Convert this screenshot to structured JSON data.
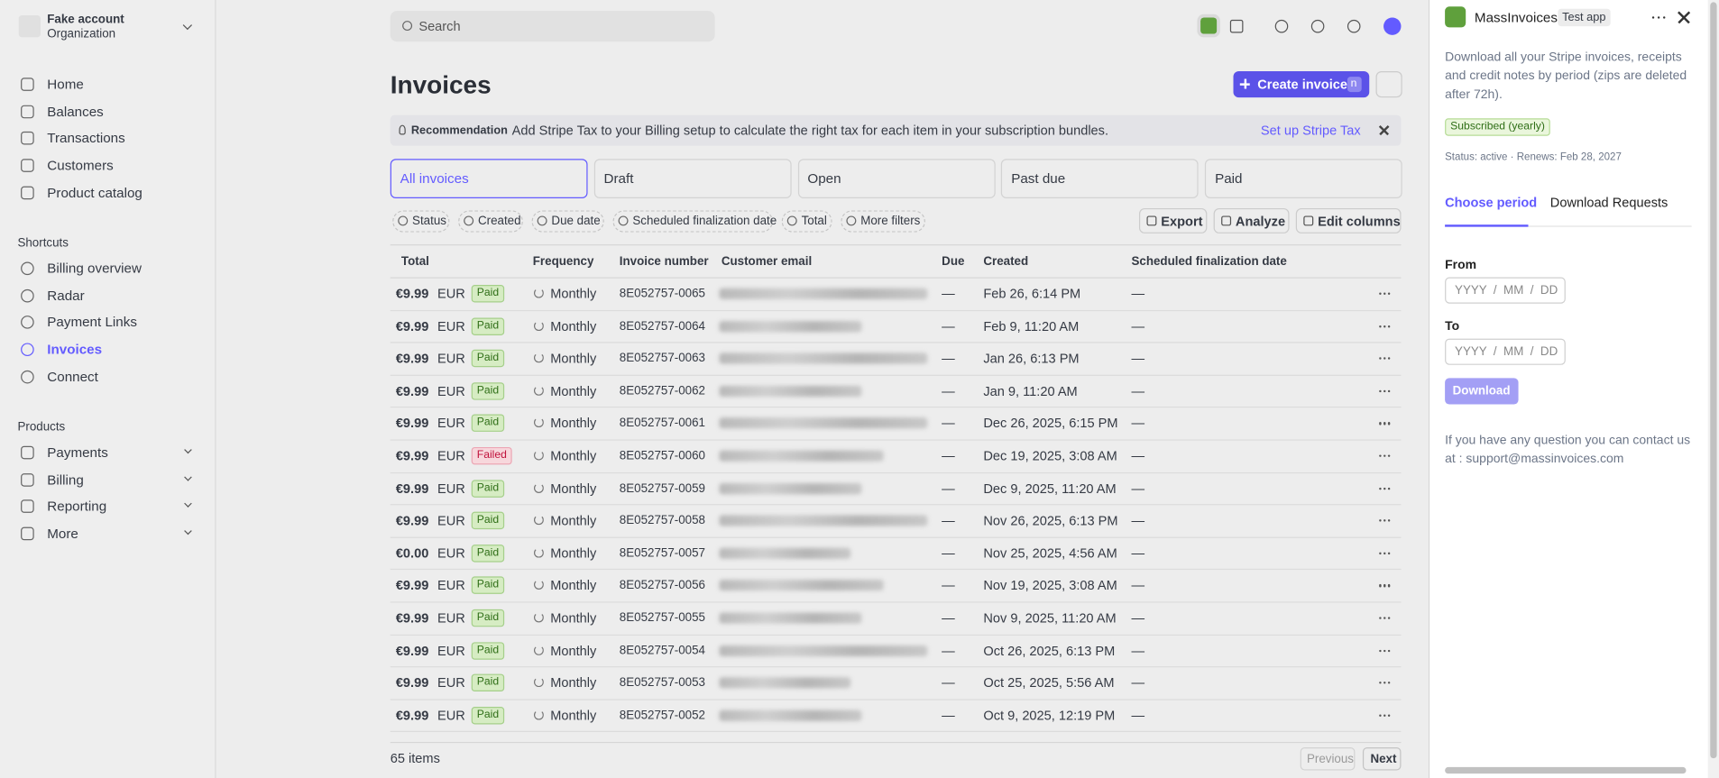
{
  "account": {
    "name": "Fake account",
    "type": "Organization"
  },
  "nav": [
    "Home",
    "Balances",
    "Transactions",
    "Customers",
    "Product catalog"
  ],
  "shortcuts": {
    "title": "Shortcuts",
    "items": [
      "Billing overview",
      "Radar",
      "Payment Links",
      "Invoices",
      "Connect"
    ]
  },
  "products": {
    "title": "Products",
    "items": [
      "Payments",
      "Billing",
      "Reporting",
      "More"
    ]
  },
  "search": "Search",
  "title": "Invoices",
  "create_button": {
    "label": "Create invoice",
    "shortcut": "n"
  },
  "recommendation": {
    "label": "Recommendation",
    "text": "Add Stripe Tax to your Billing setup to calculate the right tax for each item in your subscription bundles.",
    "action": "Set up Stripe Tax"
  },
  "tabs": [
    "All invoices",
    "Draft",
    "Open",
    "Past due",
    "Paid"
  ],
  "filters": [
    "Status",
    "Created",
    "Due date",
    "Scheduled finalization date",
    "Total",
    "More filters"
  ],
  "actions": [
    "Export",
    "Analyze",
    "Edit columns"
  ],
  "table": {
    "columns": [
      "Total",
      "Frequency",
      "Invoice number",
      "Customer email",
      "Due",
      "Created",
      "Scheduled finalization date"
    ],
    "rows": [
      {
        "total": "€9.99",
        "currency": "EUR",
        "status": "Paid",
        "frequency": "Monthly",
        "number": "8E052757-0065",
        "due": "—",
        "created": "Feb 26, 6:14 PM",
        "scheduled": "—"
      },
      {
        "total": "€9.99",
        "currency": "EUR",
        "status": "Paid",
        "frequency": "Monthly",
        "number": "8E052757-0064",
        "due": "—",
        "created": "Feb 9, 11:20 AM",
        "scheduled": "—"
      },
      {
        "total": "€9.99",
        "currency": "EUR",
        "status": "Paid",
        "frequency": "Monthly",
        "number": "8E052757-0063",
        "due": "—",
        "created": "Jan 26, 6:13 PM",
        "scheduled": "—"
      },
      {
        "total": "€9.99",
        "currency": "EUR",
        "status": "Paid",
        "frequency": "Monthly",
        "number": "8E052757-0062",
        "due": "—",
        "created": "Jan 9, 11:20 AM",
        "scheduled": "—"
      },
      {
        "total": "€9.99",
        "currency": "EUR",
        "status": "Paid",
        "frequency": "Monthly",
        "number": "8E052757-0061",
        "due": "—",
        "created": "Dec 26, 2025, 6:15 PM",
        "scheduled": "—"
      },
      {
        "total": "€9.99",
        "currency": "EUR",
        "status": "Failed",
        "frequency": "Monthly",
        "number": "8E052757-0060",
        "due": "—",
        "created": "Dec 19, 2025, 3:08 AM",
        "scheduled": "—"
      },
      {
        "total": "€9.99",
        "currency": "EUR",
        "status": "Paid",
        "frequency": "Monthly",
        "number": "8E052757-0059",
        "due": "—",
        "created": "Dec 9, 2025, 11:20 AM",
        "scheduled": "—"
      },
      {
        "total": "€9.99",
        "currency": "EUR",
        "status": "Paid",
        "frequency": "Monthly",
        "number": "8E052757-0058",
        "due": "—",
        "created": "Nov 26, 2025, 6:13 PM",
        "scheduled": "—"
      },
      {
        "total": "€0.00",
        "currency": "EUR",
        "status": "Paid",
        "frequency": "Monthly",
        "number": "8E052757-0057",
        "due": "—",
        "created": "Nov 25, 2025, 4:56 AM",
        "scheduled": "—"
      },
      {
        "total": "€9.99",
        "currency": "EUR",
        "status": "Paid",
        "frequency": "Monthly",
        "number": "8E052757-0056",
        "due": "—",
        "created": "Nov 19, 2025, 3:08 AM",
        "scheduled": "—"
      },
      {
        "total": "€9.99",
        "currency": "EUR",
        "status": "Paid",
        "frequency": "Monthly",
        "number": "8E052757-0055",
        "due": "—",
        "created": "Nov 9, 2025, 11:20 AM",
        "scheduled": "—"
      },
      {
        "total": "€9.99",
        "currency": "EUR",
        "status": "Paid",
        "frequency": "Monthly",
        "number": "8E052757-0054",
        "due": "—",
        "created": "Oct 26, 2025, 6:13 PM",
        "scheduled": "—"
      },
      {
        "total": "€9.99",
        "currency": "EUR",
        "status": "Paid",
        "frequency": "Monthly",
        "number": "8E052757-0053",
        "due": "—",
        "created": "Oct 25, 2025, 5:56 AM",
        "scheduled": "—"
      },
      {
        "total": "€9.99",
        "currency": "EUR",
        "status": "Paid",
        "frequency": "Monthly",
        "number": "8E052757-0052",
        "due": "—",
        "created": "Oct 9, 2025, 12:19 PM",
        "scheduled": "—"
      }
    ]
  },
  "footer": {
    "count": "65 items",
    "previous": "Previous",
    "next": "Next"
  },
  "app": {
    "name": "MassInvoices",
    "badge": "Test app",
    "description": "Download all your Stripe invoices, receipts and credit notes by period (zips are deleted after 72h).",
    "subscription": "Subscribed (yearly)",
    "status": "Status: active · Renews: Feb 28, 2027",
    "tabs": [
      "Choose period",
      "Download Requests"
    ],
    "from": "From",
    "to": "To",
    "placeholder": "YYYY  /  MM  /  DD",
    "download": "Download",
    "contact": "If you have any question you can contact us at : support@massinvoices.com"
  }
}
